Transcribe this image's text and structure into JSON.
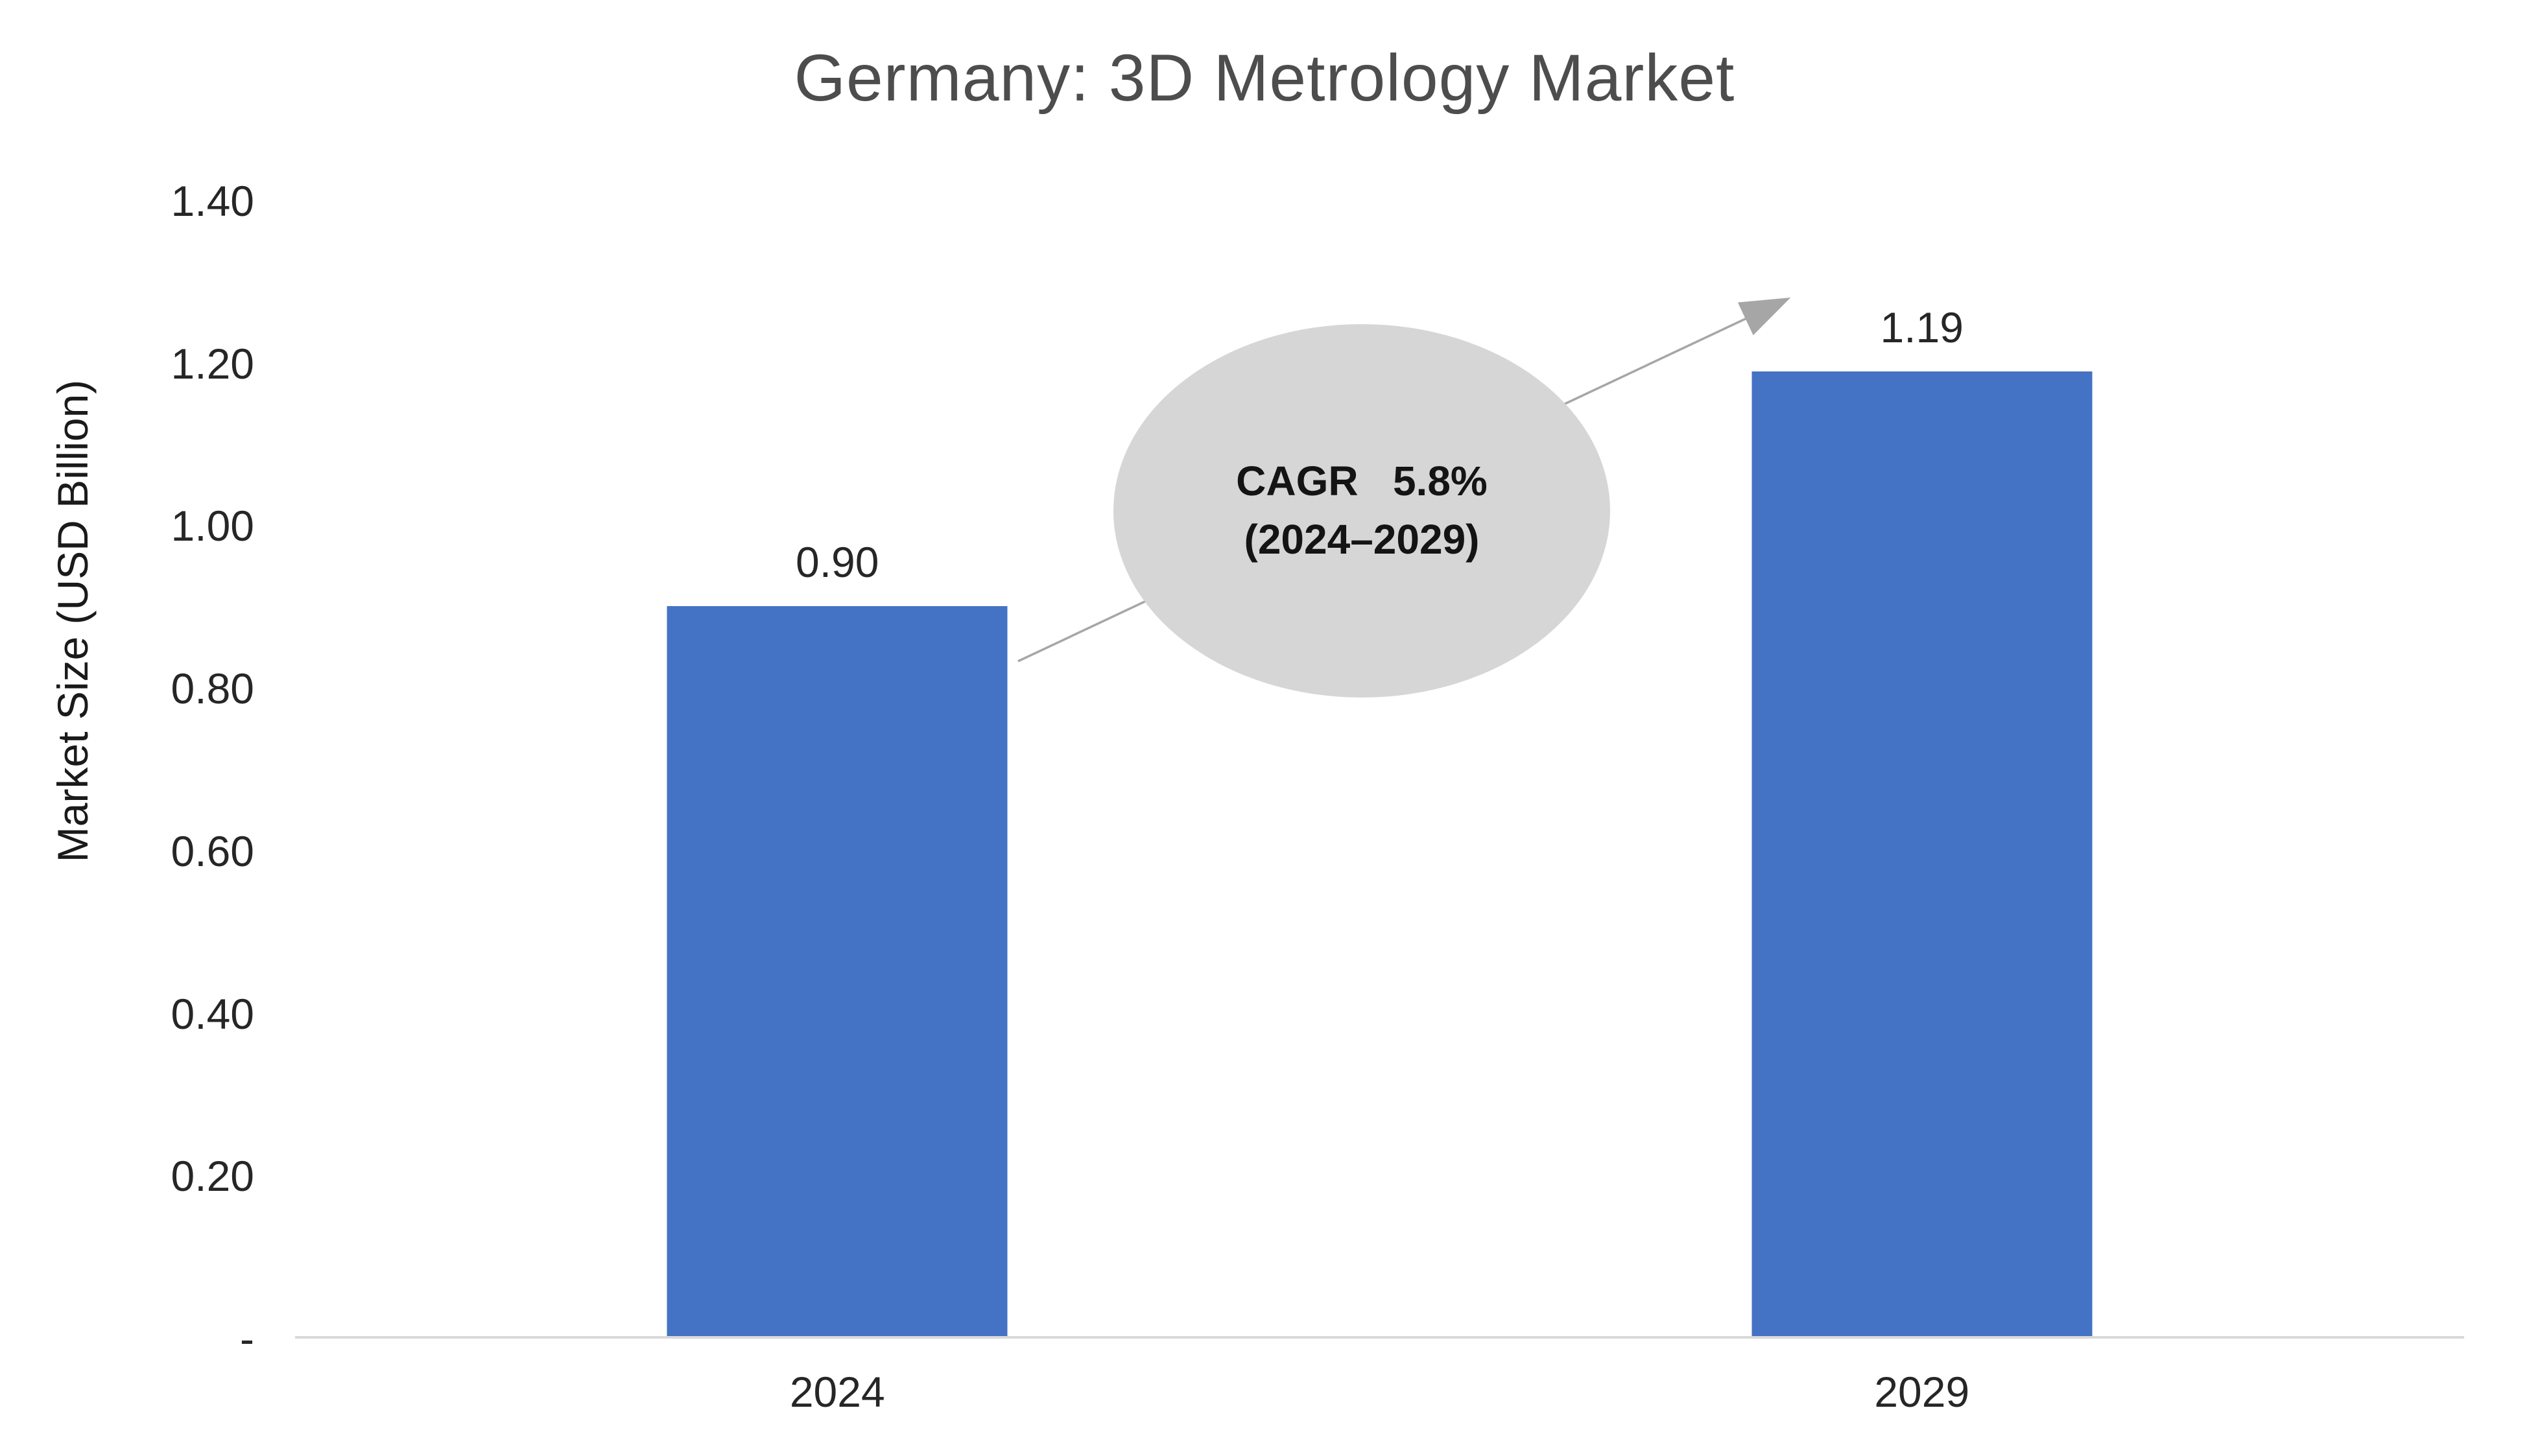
{
  "chart_data": {
    "type": "bar",
    "title": "Germany: 3D Metrology Market",
    "categories": [
      "2024",
      "2029"
    ],
    "values": [
      0.9,
      1.19
    ],
    "value_labels": [
      "0.90",
      "1.19"
    ],
    "xlabel": "",
    "ylabel": "Market Size (USD Billion)",
    "ylim": [
      0,
      1.4
    ],
    "yticks": [
      {
        "value": 1.4,
        "label": "1.40"
      },
      {
        "value": 1.2,
        "label": "1.20"
      },
      {
        "value": 1.0,
        "label": "1.00"
      },
      {
        "value": 0.8,
        "label": "0.80"
      },
      {
        "value": 0.6,
        "label": "0.60"
      },
      {
        "value": 0.4,
        "label": "0.40"
      },
      {
        "value": 0.2,
        "label": "0.20"
      },
      {
        "value": 0.0,
        "label": "-"
      }
    ],
    "grid": false,
    "legend": false,
    "bar_color": "#4472C4",
    "annotation": {
      "shape": "ellipse",
      "fill": "#d6d6d6",
      "lines": [
        "CAGR   5.8%",
        "(2024–2029)"
      ]
    },
    "arrow": {
      "color": "#a6a6a6"
    }
  }
}
